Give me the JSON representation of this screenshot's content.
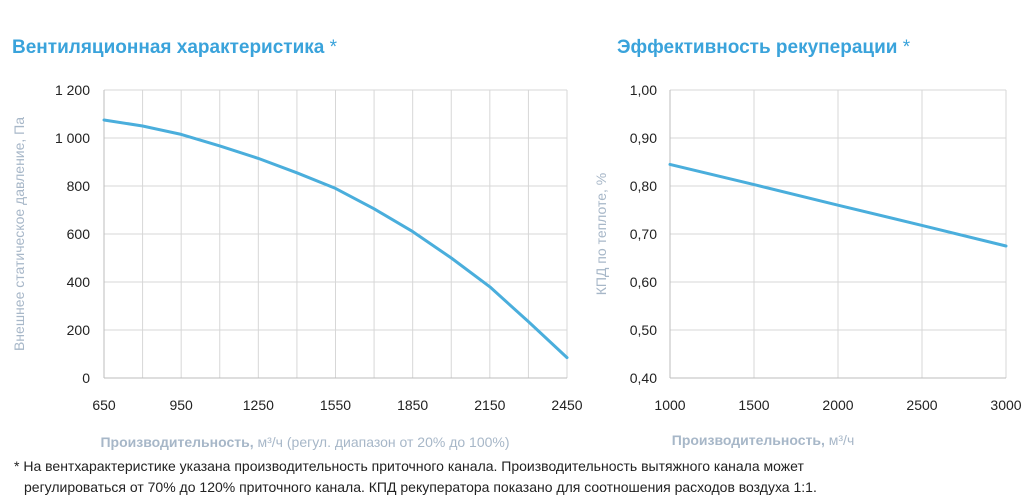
{
  "charts": {
    "left": {
      "title": "Вентиляционная характеристика",
      "title_mark": "*"
    },
    "right": {
      "title": "Эффективность рекуперации",
      "title_mark": "*"
    }
  },
  "footnote": {
    "line1": "* На вентхарактеристике указана производительность приточного канала. Производительность вытяжного канала может",
    "line2": "регулироваться от 70% до 120% приточного канала. КПД рекуператора показано для соотношения расходов воздуха 1:1."
  },
  "colors": {
    "series": "#4aaedc",
    "title": "#3aa3db",
    "axis_title": "#a7b7c8",
    "grid": "#d7d7d7"
  },
  "chart_data": [
    {
      "type": "line",
      "title": "Вентиляционная характеристика *",
      "xlabel_bold": "Производительность",
      "xlabel_unit": "м³/ч",
      "xlabel_note": "(регул. диапазон от 20% до 100%)",
      "ylabel": "Внешнее статическое давление, Па",
      "xlim": [
        650,
        2450
      ],
      "ylim": [
        0,
        1200
      ],
      "x_ticks": [
        650,
        950,
        1250,
        1550,
        1850,
        2150,
        2450
      ],
      "x_tick_labels": [
        "650",
        "950",
        "1250",
        "1550",
        "1850",
        "2150",
        "2450"
      ],
      "x_minor_ticks": [
        800,
        1100,
        1400,
        1700,
        2000,
        2300
      ],
      "y_ticks": [
        0,
        200,
        400,
        600,
        800,
        1000,
        1200
      ],
      "y_tick_labels": [
        "0",
        "200",
        "400",
        "600",
        "800",
        "1 000",
        "1 200"
      ],
      "grid": true,
      "series": [
        {
          "x": [
            650,
            800,
            950,
            1100,
            1250,
            1400,
            1550,
            1700,
            1850,
            2000,
            2150,
            2300,
            2450
          ],
          "values": [
            1075,
            1050,
            1015,
            967,
            915,
            855,
            790,
            705,
            610,
            500,
            380,
            235,
            85
          ]
        }
      ]
    },
    {
      "type": "line",
      "title": "Эффективность рекуперации *",
      "xlabel_bold": "Производительность",
      "xlabel_unit": "м³/ч",
      "ylabel": "КПД по теплоте, %",
      "xlim": [
        1000,
        3000
      ],
      "ylim": [
        0.4,
        1.0
      ],
      "x_ticks": [
        1000,
        1500,
        2000,
        2500,
        3000
      ],
      "x_tick_labels": [
        "1000",
        "1500",
        "2000",
        "2500",
        "3000"
      ],
      "y_ticks": [
        0.4,
        0.5,
        0.6,
        0.7,
        0.8,
        0.9,
        1.0
      ],
      "y_tick_labels": [
        "0,40",
        "0,50",
        "0,60",
        "0,70",
        "0,80",
        "0,90",
        "1,00"
      ],
      "grid": true,
      "series": [
        {
          "x": [
            1000,
            1500,
            2000,
            2500,
            3000
          ],
          "values": [
            0.845,
            0.803,
            0.76,
            0.718,
            0.675
          ]
        }
      ]
    }
  ]
}
